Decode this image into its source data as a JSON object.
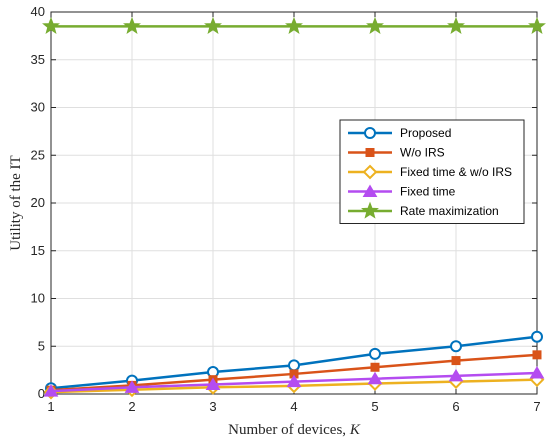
{
  "chart_data": {
    "type": "line",
    "title": "",
    "xlabel": "Number of devices, ",
    "xlabel_var": "K",
    "ylabel": "Utility of the IT",
    "xlim": [
      1,
      7
    ],
    "ylim": [
      0,
      40
    ],
    "xticks": [
      1,
      2,
      3,
      4,
      5,
      6,
      7
    ],
    "yticks": [
      0,
      5,
      10,
      15,
      20,
      25,
      30,
      35,
      40
    ],
    "grid": true,
    "legend_position": "center-right",
    "x": [
      1,
      2,
      3,
      4,
      5,
      6,
      7
    ],
    "series": [
      {
        "name": "Proposed",
        "color": "#0072BD",
        "marker": "circle",
        "values": [
          0.6,
          1.4,
          2.3,
          3.0,
          4.2,
          5.0,
          6.0
        ]
      },
      {
        "name": "W/o IRS",
        "color": "#D95319",
        "marker": "square",
        "values": [
          0.4,
          0.9,
          1.5,
          2.1,
          2.8,
          3.5,
          4.1
        ]
      },
      {
        "name": "Fixed time & w/o IRS",
        "color": "#EDB120",
        "marker": "diamond",
        "values": [
          0.2,
          0.45,
          0.7,
          0.85,
          1.1,
          1.3,
          1.5
        ]
      },
      {
        "name": "Fixed time",
        "color": "#B44CF0",
        "marker": "triangle",
        "values": [
          0.3,
          0.7,
          1.0,
          1.3,
          1.6,
          1.9,
          2.2
        ]
      },
      {
        "name": "Rate maximization",
        "color": "#77AC30",
        "marker": "star",
        "values": [
          38.5,
          38.5,
          38.5,
          38.5,
          38.5,
          38.5,
          38.5
        ]
      }
    ]
  }
}
